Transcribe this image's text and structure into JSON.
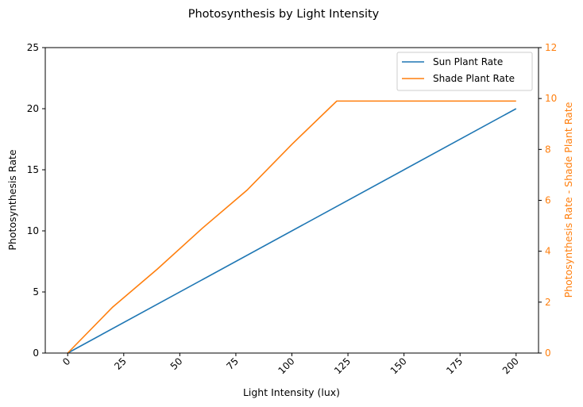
{
  "chart_data": {
    "type": "line",
    "title": "Photosynthesis by Light Intensity",
    "xlabel": "Light Intensity (lux)",
    "ylabel": "Photosynthesis Rate",
    "y2label": "Photosynthesis Rate - Shade Plant Rate",
    "xlim": [
      -10,
      210
    ],
    "ylim": [
      0,
      25
    ],
    "y2lim": [
      0,
      12
    ],
    "xticks": [
      0,
      25,
      50,
      75,
      100,
      125,
      150,
      175,
      200
    ],
    "yticks": [
      0,
      5,
      10,
      15,
      20,
      25
    ],
    "y2ticks": [
      0,
      2,
      4,
      6,
      8,
      10,
      12
    ],
    "grid": false,
    "legend_position": "top-right",
    "series": [
      {
        "name": "Sun Plant Rate",
        "axis": "left",
        "color": "#1f77b4",
        "x": [
          0,
          200
        ],
        "y": [
          0,
          20
        ]
      },
      {
        "name": "Shade Plant Rate",
        "axis": "right",
        "color": "#ff7f0e",
        "x": [
          0,
          20,
          40,
          60,
          80,
          100,
          120,
          140,
          160,
          180,
          200
        ],
        "y": [
          0,
          1.8,
          3.3,
          4.9,
          6.4,
          8.2,
          9.9,
          9.9,
          9.9,
          9.9,
          9.9
        ]
      }
    ]
  }
}
